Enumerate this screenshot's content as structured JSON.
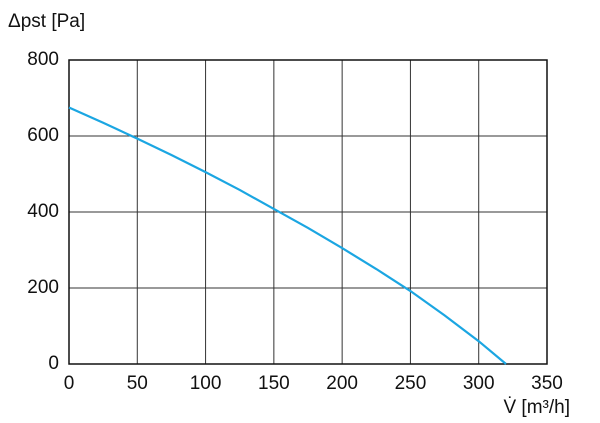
{
  "chart_data": {
    "type": "line",
    "ylabel": "Δpst [Pa]",
    "xlabel": "V̇ [m³/h]",
    "series": [
      {
        "color": "#1ba6e2",
        "x": [
          0,
          25,
          50,
          75,
          100,
          125,
          150,
          175,
          200,
          225,
          250,
          275,
          300,
          320
        ],
        "values": [
          675,
          635,
          593,
          550,
          505,
          458,
          408,
          358,
          305,
          250,
          192,
          128,
          60,
          0
        ]
      }
    ],
    "xlim": [
      0,
      350
    ],
    "xticks": [
      0,
      50,
      100,
      150,
      200,
      250,
      300,
      350
    ],
    "ylim": [
      0,
      800
    ],
    "yticks": [
      0,
      200,
      400,
      600,
      800
    ],
    "grid": true
  }
}
